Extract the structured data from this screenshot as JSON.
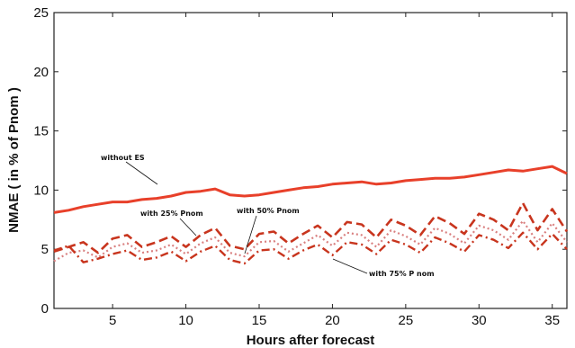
{
  "chart_data": {
    "type": "line",
    "xlabel": "Hours after forecast",
    "ylabel": "NMAE ( in % of Pnom )",
    "xlim": [
      1,
      36
    ],
    "ylim": [
      0,
      25
    ],
    "xticks": [
      5,
      10,
      15,
      20,
      25,
      30,
      35
    ],
    "yticks": [
      0,
      5,
      10,
      15,
      20,
      25
    ],
    "grid": false,
    "x": [
      1,
      2,
      3,
      4,
      5,
      6,
      7,
      8,
      9,
      10,
      11,
      12,
      13,
      14,
      15,
      16,
      17,
      18,
      19,
      20,
      21,
      22,
      23,
      24,
      25,
      26,
      27,
      28,
      29,
      30,
      31,
      32,
      33,
      34,
      35,
      36
    ],
    "series": [
      {
        "name": "without ES",
        "color": "#e8402a",
        "style": "solid",
        "values": [
          8.1,
          8.3,
          8.6,
          8.8,
          9.0,
          9.0,
          9.2,
          9.3,
          9.5,
          9.8,
          9.9,
          10.1,
          9.6,
          9.5,
          9.6,
          9.8,
          10.0,
          10.2,
          10.3,
          10.5,
          10.6,
          10.7,
          10.5,
          10.6,
          10.8,
          10.9,
          11.0,
          11.0,
          11.1,
          11.3,
          11.5,
          11.7,
          11.6,
          11.8,
          12.0,
          11.4
        ]
      },
      {
        "name": "with 25% Pnom",
        "color": "#c8351e",
        "style": "dashed",
        "values": [
          4.8,
          5.2,
          5.6,
          4.7,
          5.9,
          6.2,
          5.2,
          5.6,
          6.1,
          5.2,
          6.2,
          6.8,
          5.3,
          5.0,
          6.3,
          6.5,
          5.5,
          6.3,
          7.0,
          6.0,
          7.3,
          7.1,
          6.0,
          7.5,
          7.0,
          6.2,
          7.8,
          7.2,
          6.3,
          8.0,
          7.5,
          6.6,
          8.9,
          6.6,
          8.4,
          6.5
        ]
      },
      {
        "name": "with 50% Pnom",
        "color": "#d98080",
        "style": "dotted",
        "values": [
          4.0,
          4.7,
          4.9,
          4.3,
          5.2,
          5.5,
          4.7,
          4.9,
          5.4,
          4.6,
          5.5,
          6.0,
          4.7,
          4.4,
          5.6,
          5.7,
          4.8,
          5.5,
          6.2,
          5.3,
          6.4,
          6.2,
          5.2,
          6.6,
          6.1,
          5.4,
          6.8,
          6.3,
          5.5,
          7.0,
          6.6,
          5.8,
          7.4,
          5.6,
          7.2,
          5.6
        ]
      },
      {
        "name": "with 75% P nom",
        "color": "#c8351e",
        "style": "dashdot",
        "values": [
          4.9,
          5.3,
          3.9,
          4.2,
          4.6,
          4.9,
          4.1,
          4.3,
          4.8,
          4.0,
          4.8,
          5.3,
          4.1,
          3.8,
          4.9,
          5.0,
          4.2,
          4.9,
          5.4,
          4.5,
          5.6,
          5.4,
          4.6,
          5.8,
          5.4,
          4.7,
          6.0,
          5.5,
          4.8,
          6.2,
          5.8,
          5.1,
          6.4,
          5.0,
          6.3,
          5.0
        ]
      }
    ],
    "annotations": {
      "without_es": "without ES",
      "p25": "with 25% Pnom",
      "p50": "with 50% Pnom",
      "p75": "with 75% P nom"
    }
  }
}
